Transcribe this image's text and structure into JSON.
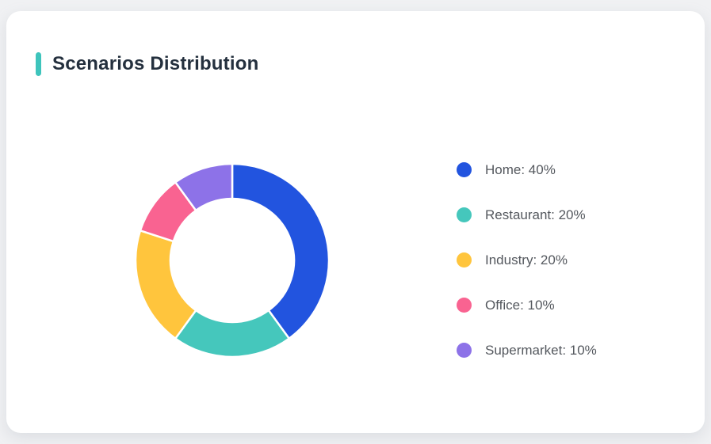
{
  "page": {
    "background_color": "#f0f1f3",
    "card_background": "#ffffff"
  },
  "card": {
    "title": "Scenarios Distribution",
    "accent_color": "#3ec4bc",
    "title_color": "#24303e"
  },
  "chart_data": {
    "type": "pie",
    "title": "Scenarios Distribution",
    "donut": true,
    "inner_radius_ratio": 0.64,
    "start_angle_deg": 0,
    "direction": "clockwise",
    "legend_position": "right",
    "segments": [
      {
        "label": "Home",
        "value": 40,
        "color": "#2254df",
        "display": "Home: 40%"
      },
      {
        "label": "Restaurant",
        "value": 20,
        "color": "#45c7bc",
        "display": "Restaurant: 20%"
      },
      {
        "label": "Industry",
        "value": 20,
        "color": "#ffc53d",
        "display": "Industry: 20%"
      },
      {
        "label": "Office",
        "value": 10,
        "color": "#f96391",
        "display": "Office: 10%"
      },
      {
        "label": "Supermarket",
        "value": 10,
        "color": "#8d72e8",
        "display": "Supermarket: 10%"
      }
    ]
  }
}
